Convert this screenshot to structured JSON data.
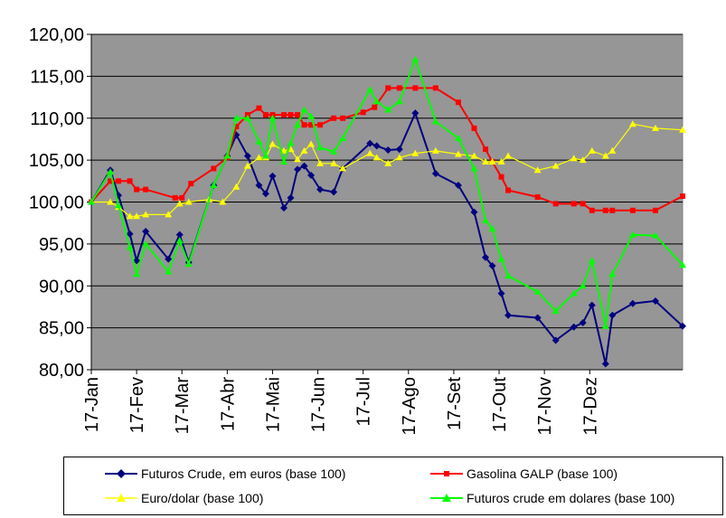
{
  "chart_data": {
    "type": "line",
    "title": "",
    "xlabel": "",
    "ylabel": "",
    "ylim": [
      80,
      120
    ],
    "y_ticks": [
      "80,00",
      "85,00",
      "90,00",
      "95,00",
      "100,00",
      "105,00",
      "110,00",
      "115,00",
      "120,00"
    ],
    "x_ticks": [
      "17-Jan",
      "17-Fev",
      "17-Mar",
      "17-Abr",
      "17-Mai",
      "17-Jun",
      "17-Jul",
      "17-Ago",
      "17-Set",
      "17-Out",
      "17-Nov",
      "17-Dez"
    ],
    "grid": "horizontal",
    "plot_background": "#969696",
    "legend_position": "bottom",
    "series": [
      {
        "name": "Futuros Crude, em euros (base 100)",
        "color": "#000080",
        "marker": "diamond",
        "points": [
          [
            0,
            100.0
          ],
          [
            0.42,
            103.8
          ],
          [
            0.6,
            100.8
          ],
          [
            0.85,
            96.2
          ],
          [
            1.0,
            93.0
          ],
          [
            1.2,
            96.5
          ],
          [
            1.7,
            93.2
          ],
          [
            1.95,
            96.1
          ],
          [
            2.15,
            92.8
          ],
          [
            2.7,
            102.0
          ],
          [
            3.0,
            105.5
          ],
          [
            3.2,
            108.0
          ],
          [
            3.45,
            105.5
          ],
          [
            3.7,
            102.0
          ],
          [
            3.85,
            101.0
          ],
          [
            4.0,
            103.1
          ],
          [
            4.25,
            99.3
          ],
          [
            4.4,
            100.5
          ],
          [
            4.55,
            103.9
          ],
          [
            4.7,
            104.3
          ],
          [
            4.85,
            103.2
          ],
          [
            5.05,
            101.5
          ],
          [
            5.35,
            101.2
          ],
          [
            5.55,
            104.0
          ],
          [
            6.15,
            107.0
          ],
          [
            6.3,
            106.7
          ],
          [
            6.55,
            106.2
          ],
          [
            6.8,
            106.3
          ],
          [
            7.15,
            110.6
          ],
          [
            7.6,
            103.4
          ],
          [
            8.1,
            102.0
          ],
          [
            8.45,
            98.8
          ],
          [
            8.7,
            93.4
          ],
          [
            8.85,
            92.4
          ],
          [
            9.05,
            89.1
          ],
          [
            9.2,
            86.5
          ],
          [
            9.85,
            86.2
          ],
          [
            10.25,
            83.5
          ],
          [
            10.65,
            85.1
          ],
          [
            10.85,
            85.6
          ],
          [
            11.05,
            87.7
          ],
          [
            11.35,
            80.7
          ],
          [
            11.5,
            86.5
          ],
          [
            11.95,
            87.9
          ],
          [
            12.45,
            88.2
          ],
          [
            13.05,
            85.2
          ]
        ]
      },
      {
        "name": "Gasolina GALP (base 100)",
        "color": "#ff0000",
        "marker": "square",
        "points": [
          [
            0,
            100.0
          ],
          [
            0.42,
            102.5
          ],
          [
            0.6,
            102.5
          ],
          [
            0.85,
            102.5
          ],
          [
            1.0,
            101.5
          ],
          [
            1.2,
            101.5
          ],
          [
            1.85,
            100.5
          ],
          [
            2.0,
            100.5
          ],
          [
            2.2,
            102.2
          ],
          [
            2.7,
            104.0
          ],
          [
            3.0,
            105.3
          ],
          [
            3.2,
            109.0
          ],
          [
            3.45,
            110.4
          ],
          [
            3.7,
            111.2
          ],
          [
            3.85,
            110.4
          ],
          [
            4.0,
            110.4
          ],
          [
            4.25,
            110.4
          ],
          [
            4.4,
            110.4
          ],
          [
            4.55,
            110.4
          ],
          [
            4.7,
            109.2
          ],
          [
            4.85,
            109.2
          ],
          [
            5.05,
            109.2
          ],
          [
            5.35,
            110.0
          ],
          [
            5.55,
            110.0
          ],
          [
            6.0,
            110.7
          ],
          [
            6.25,
            111.3
          ],
          [
            6.55,
            113.6
          ],
          [
            6.8,
            113.6
          ],
          [
            7.15,
            113.6
          ],
          [
            7.6,
            113.6
          ],
          [
            8.1,
            111.9
          ],
          [
            8.45,
            108.8
          ],
          [
            8.7,
            106.3
          ],
          [
            8.85,
            104.8
          ],
          [
            9.05,
            103.0
          ],
          [
            9.2,
            101.4
          ],
          [
            9.85,
            100.6
          ],
          [
            10.25,
            99.8
          ],
          [
            10.65,
            99.8
          ],
          [
            10.85,
            99.8
          ],
          [
            11.05,
            99.0
          ],
          [
            11.35,
            99.0
          ],
          [
            11.5,
            99.0
          ],
          [
            11.95,
            99.0
          ],
          [
            12.45,
            99.0
          ],
          [
            13.05,
            100.7
          ]
        ]
      },
      {
        "name": "Euro/dolar (base 100)",
        "color": "#ffff00",
        "marker": "triangle",
        "points": [
          [
            0,
            100.0
          ],
          [
            0.42,
            100.0
          ],
          [
            0.6,
            99.4
          ],
          [
            0.85,
            98.3
          ],
          [
            1.0,
            98.3
          ],
          [
            1.2,
            98.5
          ],
          [
            1.7,
            98.5
          ],
          [
            1.95,
            99.8
          ],
          [
            2.15,
            100.0
          ],
          [
            2.6,
            100.3
          ],
          [
            2.9,
            100.0
          ],
          [
            3.2,
            101.8
          ],
          [
            3.45,
            104.3
          ],
          [
            3.7,
            105.3
          ],
          [
            3.85,
            105.3
          ],
          [
            4.0,
            106.9
          ],
          [
            4.25,
            106.1
          ],
          [
            4.4,
            106.3
          ],
          [
            4.55,
            105.1
          ],
          [
            4.7,
            106.1
          ],
          [
            4.85,
            106.9
          ],
          [
            5.05,
            104.6
          ],
          [
            5.35,
            104.6
          ],
          [
            5.55,
            104.0
          ],
          [
            6.15,
            105.8
          ],
          [
            6.3,
            105.3
          ],
          [
            6.55,
            104.6
          ],
          [
            6.8,
            105.3
          ],
          [
            7.15,
            105.8
          ],
          [
            7.6,
            106.1
          ],
          [
            8.1,
            105.7
          ],
          [
            8.45,
            105.5
          ],
          [
            8.7,
            104.8
          ],
          [
            8.85,
            104.8
          ],
          [
            9.05,
            104.8
          ],
          [
            9.2,
            105.5
          ],
          [
            9.85,
            103.8
          ],
          [
            10.25,
            104.3
          ],
          [
            10.65,
            105.2
          ],
          [
            10.85,
            105.0
          ],
          [
            11.05,
            106.1
          ],
          [
            11.35,
            105.5
          ],
          [
            11.5,
            106.1
          ],
          [
            11.95,
            109.3
          ],
          [
            12.45,
            108.8
          ],
          [
            13.05,
            108.6
          ]
        ]
      },
      {
        "name": "Futuros crude em dolares (base 100)",
        "color": "#00ff00",
        "marker": "triangle",
        "points": [
          [
            0,
            100.0
          ],
          [
            0.42,
            103.6
          ],
          [
            0.6,
            99.6
          ],
          [
            0.85,
            94.6
          ],
          [
            1.0,
            91.4
          ],
          [
            1.2,
            95.0
          ],
          [
            1.7,
            91.7
          ],
          [
            1.95,
            95.4
          ],
          [
            2.15,
            92.6
          ],
          [
            2.7,
            102.0
          ],
          [
            3.0,
            105.5
          ],
          [
            3.2,
            110.0
          ],
          [
            3.45,
            110.0
          ],
          [
            3.7,
            107.2
          ],
          [
            3.85,
            105.5
          ],
          [
            4.0,
            110.0
          ],
          [
            4.25,
            104.8
          ],
          [
            4.4,
            107.0
          ],
          [
            4.55,
            109.2
          ],
          [
            4.7,
            111.0
          ],
          [
            4.85,
            110.2
          ],
          [
            5.05,
            106.5
          ],
          [
            5.35,
            106.0
          ],
          [
            5.55,
            107.6
          ],
          [
            6.15,
            113.4
          ],
          [
            6.3,
            112.0
          ],
          [
            6.55,
            111.0
          ],
          [
            6.8,
            112.0
          ],
          [
            7.15,
            117.0
          ],
          [
            7.6,
            109.6
          ],
          [
            8.1,
            107.6
          ],
          [
            8.45,
            104.0
          ],
          [
            8.7,
            97.8
          ],
          [
            8.85,
            96.8
          ],
          [
            9.05,
            93.2
          ],
          [
            9.2,
            91.2
          ],
          [
            9.85,
            89.3
          ],
          [
            10.25,
            87.0
          ],
          [
            10.65,
            89.1
          ],
          [
            10.85,
            90.0
          ],
          [
            11.05,
            93.0
          ],
          [
            11.35,
            85.2
          ],
          [
            11.5,
            91.4
          ],
          [
            11.95,
            96.1
          ],
          [
            12.45,
            96.0
          ],
          [
            13.05,
            92.5
          ]
        ]
      }
    ]
  }
}
